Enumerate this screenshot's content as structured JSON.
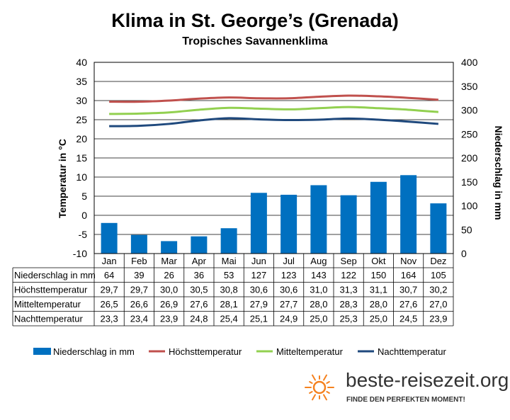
{
  "chart_data": {
    "type": "bar",
    "title": "Klima in St. George’s (Grenada)",
    "subtitle": "Tropisches Savannenklima",
    "categories": [
      "Jan",
      "Feb",
      "Mar",
      "Apr",
      "Mai",
      "Jun",
      "Jul",
      "Aug",
      "Sep",
      "Okt",
      "Nov",
      "Dez"
    ],
    "ylabel_left": "Temperatur in °C",
    "ylabel_right": "Niederschlag in mm",
    "ylim_left": [
      -10,
      40
    ],
    "ylim_right": [
      0,
      400
    ],
    "yticks_left": [
      "40",
      "35",
      "30",
      "25",
      "20",
      "15",
      "10",
      "5",
      "0",
      "-5",
      "-10"
    ],
    "yticks_right": [
      "400",
      "350",
      "300",
      "250",
      "200",
      "150",
      "100",
      "50",
      "0"
    ],
    "grid": true,
    "legend_position": "bottom",
    "series": [
      {
        "name": "Niederschlag in mm",
        "kind": "bar",
        "axis": "right",
        "color": "#0070C0",
        "values": [
          64,
          39,
          26,
          36,
          53,
          127,
          123,
          143,
          122,
          150,
          164,
          105
        ],
        "labels": [
          "64",
          "39",
          "26",
          "36",
          "53",
          "127",
          "123",
          "143",
          "122",
          "150",
          "164",
          "105"
        ]
      },
      {
        "name": "Höchsttemperatur",
        "kind": "line",
        "axis": "left",
        "color": "#C0504D",
        "values": [
          29.7,
          29.7,
          30.0,
          30.5,
          30.8,
          30.6,
          30.6,
          31.0,
          31.3,
          31.1,
          30.7,
          30.2
        ],
        "labels": [
          "29,7",
          "29,7",
          "30,0",
          "30,5",
          "30,8",
          "30,6",
          "30,6",
          "31,0",
          "31,3",
          "31,1",
          "30,7",
          "30,2"
        ]
      },
      {
        "name": "Mitteltemperatur",
        "kind": "line",
        "axis": "left",
        "color": "#92D050",
        "values": [
          26.5,
          26.6,
          26.9,
          27.6,
          28.1,
          27.9,
          27.7,
          28.0,
          28.3,
          28.0,
          27.6,
          27.0
        ],
        "labels": [
          "26,5",
          "26,6",
          "26,9",
          "27,6",
          "28,1",
          "27,9",
          "27,7",
          "28,0",
          "28,3",
          "28,0",
          "27,6",
          "27,0"
        ]
      },
      {
        "name": "Nachttemperatur",
        "kind": "line",
        "axis": "left",
        "color": "#1F497D",
        "values": [
          23.3,
          23.4,
          23.9,
          24.8,
          25.4,
          25.1,
          24.9,
          25.0,
          25.3,
          25.0,
          24.5,
          23.9
        ],
        "labels": [
          "23,3",
          "23,4",
          "23,9",
          "24,8",
          "25,4",
          "25,1",
          "24,9",
          "25,0",
          "25,3",
          "25,0",
          "24,5",
          "23,9"
        ]
      }
    ]
  },
  "branding": {
    "site": "beste-reisezeit.org",
    "slogan": "FINDE DEN PERFEKTEN MOMENT!",
    "sun_color": "#F58220"
  }
}
